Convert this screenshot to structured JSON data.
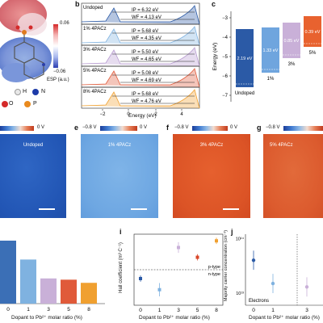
{
  "panels": {
    "a": {
      "esp_max": "0.06",
      "esp_min": "−0.06",
      "esp_label": "ESP (a.u.)",
      "legend": [
        "H",
        "N",
        "O",
        "P"
      ]
    },
    "b": {
      "label": "b",
      "xlabel": "Energy (eV)",
      "ticks": [
        "−2",
        "0",
        "2",
        "4"
      ],
      "rows": [
        {
          "name": "Undoped",
          "ip": "IP = 6.32 eV",
          "wf": "WF = 4.13 eV"
        },
        {
          "name": "1% 4PACz",
          "ip": "IP = 5.68 eV",
          "wf": "WF = 4.35 eV"
        },
        {
          "name": "3% 4PACz",
          "ip": "IP = 5.50 eV",
          "wf": "WF = 4.65 eV"
        },
        {
          "name": "5% 4PACz",
          "ip": "IP = 5.08 eV",
          "wf": "WF = 4.69 eV"
        },
        {
          "name": "8% 4PACz",
          "ip": "IP = 5.68 eV",
          "wf": "WF = 4.76 eV"
        }
      ]
    },
    "c": {
      "label": "c",
      "ylabel": "Energy (eV)",
      "yticks": [
        "−3",
        "−4",
        "−5",
        "−6",
        "−7"
      ],
      "columns": [
        "Undoped",
        "1%",
        "3%",
        "5%"
      ],
      "gap_labels": [
        "2.19 eV",
        "1.33 eV",
        "0.85 eV",
        "0.39 eV"
      ]
    },
    "maps": {
      "cbar_min": "−0.8 V",
      "cbar_max": "0 V",
      "items": [
        {
          "letter": "e",
          "label": "1% 4PACz"
        },
        {
          "letter": "f",
          "label": "3% 4PACz"
        },
        {
          "letter": "g",
          "label": "5% 4PACz"
        }
      ],
      "first_label": "Undoped"
    },
    "h": {
      "xlabel": "Dopant to Pb²⁺ molar ratio (%)",
      "categories": [
        "0",
        "1",
        "3",
        "5",
        "8"
      ]
    },
    "i": {
      "label": "i",
      "ylabel": "Hall coefficient (m³ C⁻¹)",
      "xlabel": "Dopant to Pb²⁺ molar ratio (%)",
      "ptype": "p-type",
      "ntype": "n-type",
      "categories": [
        "0",
        "1",
        "3",
        "5",
        "8"
      ]
    },
    "j": {
      "label": "j",
      "ylabel": "Majority carrier concentration (cm⁻³)",
      "xlabel": "Dopant to Pb²⁺ molar ratio (%)",
      "tick_top": "10¹⁴",
      "tick_bottom": "10¹³",
      "annotation": "Electrons",
      "categories": [
        "0",
        "1",
        "3"
      ]
    }
  },
  "chart_data": [
    {
      "type": "bar",
      "panel": "h",
      "xlabel": "Dopant to Pb²⁺ molar ratio (%)",
      "categories": [
        "0",
        "1",
        "3",
        "5",
        "8"
      ],
      "values": [
        1.0,
        0.7,
        0.4,
        0.38,
        0.33
      ],
      "colors": [
        "#3b6fb6",
        "#7fb2e0",
        "#c9b0d8",
        "#e05a3a",
        "#f0a030"
      ]
    },
    {
      "type": "scatter",
      "panel": "i",
      "ylabel": "Hall coefficient (m³ C⁻¹)",
      "xlabel": "Dopant to Pb²⁺ molar ratio (%)",
      "categories": [
        "0",
        "1",
        "3",
        "5",
        "8"
      ],
      "values": [
        -0.2,
        -0.45,
        0.5,
        0.28,
        0.65
      ],
      "errors": [
        0.07,
        0.15,
        0.12,
        0.07,
        0.07
      ],
      "colors": [
        "#2b5aa6",
        "#7fb2e0",
        "#c9b0d8",
        "#d9472a",
        "#f0a030"
      ]
    },
    {
      "type": "scatter",
      "panel": "j",
      "ylabel": "Majority carrier concentration (cm⁻³)",
      "xlabel": "Dopant to Pb²⁺ molar ratio (%)",
      "y_scale": "log",
      "categories": [
        "0",
        "1",
        "3"
      ],
      "values": [
        40000000000000.0,
        15000000000000.0,
        13000000000000.0
      ],
      "colors": [
        "#2b5aa6",
        "#7fb2e0",
        "#c9b0d8"
      ]
    }
  ]
}
